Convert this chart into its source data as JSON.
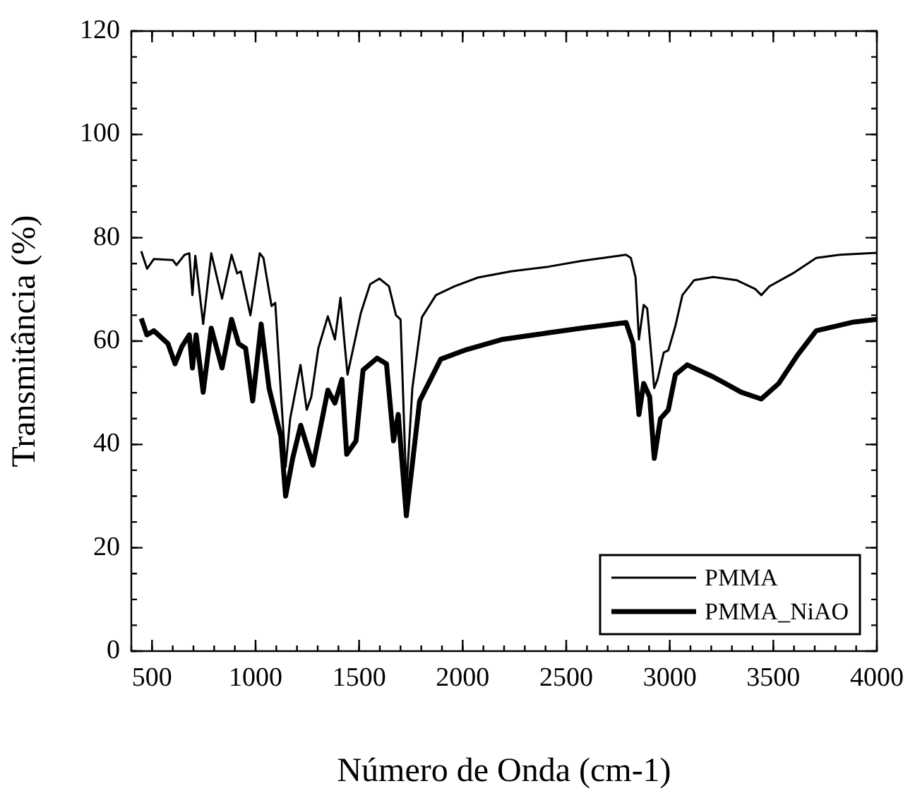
{
  "chart_data": {
    "type": "line",
    "xlabel": "Número de Onda (cm-1)",
    "ylabel": "Transmitância (%)",
    "xlim": [
      400,
      4000
    ],
    "xticks": [
      500,
      1000,
      1500,
      2000,
      2500,
      3000,
      3500,
      4000
    ],
    "ylim": [
      0,
      120
    ],
    "yticks": [
      0,
      20,
      40,
      60,
      80,
      100,
      120
    ],
    "grid": false,
    "legend": "bottom right",
    "marker": "none",
    "line_style": "solid",
    "series": [
      {
        "name": "PMMA",
        "color": "#000000",
        "x": [
          448,
          476,
          509,
          600,
          618,
          657,
          680,
          695,
          709,
          747,
          786,
          838,
          884,
          911,
          929,
          975,
          1020,
          1038,
          1077,
          1095,
          1145,
          1167,
          1217,
          1247,
          1269,
          1303,
          1349,
          1383,
          1410,
          1428,
          1444,
          1508,
          1553,
          1598,
          1644,
          1678,
          1700,
          1728,
          1757,
          1803,
          1871,
          1961,
          2074,
          2233,
          2414,
          2573,
          2789,
          2812,
          2835,
          2851,
          2874,
          2891,
          2925,
          2941,
          2971,
          2993,
          3027,
          3061,
          3118,
          3209,
          3322,
          3412,
          3442,
          3481,
          3594,
          3707,
          3821,
          4000
        ],
        "values": [
          77.4,
          74,
          75.9,
          75.7,
          74.7,
          76.7,
          77,
          68.9,
          76.5,
          63.3,
          77,
          68.2,
          76.7,
          73.1,
          73.5,
          65,
          77,
          76.1,
          66.8,
          67.4,
          35.6,
          45,
          55.4,
          46.7,
          49.2,
          58.6,
          64.8,
          60.3,
          68.4,
          60.3,
          53.5,
          65.4,
          71,
          72.1,
          70.6,
          65,
          64.2,
          31,
          50.9,
          64.6,
          68.9,
          70.6,
          72.3,
          73.5,
          74.4,
          75.5,
          76.7,
          76.1,
          72.3,
          60.3,
          67,
          66.3,
          50.9,
          52.6,
          57.8,
          58.2,
          62.9,
          68.9,
          71.8,
          72.4,
          71.8,
          70.1,
          68.9,
          70.6,
          73.1,
          76.1,
          76.7,
          77.1
        ]
      },
      {
        "name": "PMMA_NiAO",
        "color": "#000000",
        "x": [
          448,
          475,
          509,
          577,
          611,
          645,
          680,
          695,
          713,
          747,
          786,
          838,
          884,
          918,
          952,
          986,
          1027,
          1065,
          1122,
          1145,
          1179,
          1218,
          1277,
          1349,
          1383,
          1417,
          1440,
          1485,
          1519,
          1587,
          1632,
          1666,
          1689,
          1728,
          1792,
          1894,
          2007,
          2188,
          2414,
          2573,
          2789,
          2823,
          2851,
          2874,
          2903,
          2925,
          2955,
          2993,
          3027,
          3084,
          3209,
          3345,
          3442,
          3526,
          3617,
          3707,
          3889,
          4000
        ],
        "values": [
          64.4,
          61.2,
          62,
          59.5,
          55.6,
          59,
          61.2,
          54.8,
          61.2,
          50.1,
          62.5,
          54.8,
          64.2,
          59.5,
          58.6,
          48.4,
          63.3,
          50.9,
          41.6,
          30,
          37.3,
          43.7,
          36,
          50.5,
          48,
          52.6,
          38.1,
          40.7,
          54.4,
          56.7,
          55.6,
          40.7,
          45.8,
          26.2,
          48.4,
          56.5,
          58.2,
          60.3,
          61.6,
          62.5,
          63.6,
          59.5,
          45.8,
          51.8,
          49.2,
          37.3,
          45,
          46.7,
          53.5,
          55.4,
          53.1,
          50.1,
          48.8,
          51.8,
          57.3,
          62,
          63.7,
          64.2
        ]
      }
    ]
  }
}
